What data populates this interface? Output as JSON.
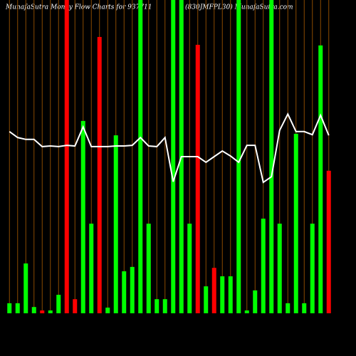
{
  "chart_data": {
    "type": "bar",
    "title": "MunafaSutra  Money Flow  Charts for 937711",
    "subtitle": "(830JMFPL30) MunafaSutra.com",
    "categories": [
      null,
      null,
      null,
      null,
      null,
      null,
      null,
      null,
      null,
      null,
      null,
      null,
      null,
      null,
      null,
      null,
      null,
      null,
      null,
      null,
      null,
      null,
      null,
      null,
      null,
      null,
      null,
      null,
      null,
      null,
      null,
      null,
      null,
      null,
      null,
      null,
      null,
      null,
      null,
      null
    ],
    "values": [
      3.2,
      3.2,
      15.9,
      2,
      0.9,
      0.9,
      5.9,
      100,
      4.5,
      61.4,
      28.6,
      88.2,
      1.8,
      56.8,
      13.4,
      14.8,
      100,
      28.6,
      4.5,
      4.5,
      100,
      100,
      28.6,
      85.7,
      8.6,
      14.5,
      11.8,
      11.8,
      100,
      0.9,
      7.3,
      30.2,
      100,
      28.6,
      3.2,
      57.3,
      3.2,
      28.6,
      85.5,
      45.5
    ],
    "colors": [
      "#00ff00",
      "#00ff00",
      "#00ff00",
      "#00ff00",
      "#ff0000",
      "#00ff00",
      "#00ff00",
      "#ff0000",
      "#ff0000",
      "#00ff00",
      "#00ff00",
      "#ff0000",
      "#00ff00",
      "#00ff00",
      "#00ff00",
      "#00ff00",
      "#00ff00",
      "#00ff00",
      "#00ff00",
      "#00ff00",
      "#00ff00",
      "#00ff00",
      "#00ff00",
      "#ff0000",
      "#00ff00",
      "#ff0000",
      "#00ff00",
      "#00ff00",
      "#00ff00",
      "#00ff00",
      "#00ff00",
      "#00ff00",
      "#00ff00",
      "#00ff00",
      "#00ff00",
      "#00ff00",
      "#00ff00",
      "#00ff00",
      "#00ff00",
      "#ff0000"
    ],
    "line": {
      "color": "#ffffff",
      "values": [
        58,
        56.1,
        55.5,
        55.5,
        53.2,
        53.4,
        53.2,
        53.6,
        53.4,
        59.5,
        53.2,
        53.2,
        53.2,
        53.4,
        53.4,
        53.6,
        56.1,
        53.4,
        53.2,
        56.1,
        42,
        50,
        50,
        50,
        48.2,
        50,
        51.8,
        50.2,
        48.2,
        53.6,
        53.6,
        41.8,
        43.6,
        58.4,
        63.6,
        58,
        58,
        57,
        63.2,
        56.8
      ]
    },
    "ylim": [
      0,
      100
    ]
  }
}
